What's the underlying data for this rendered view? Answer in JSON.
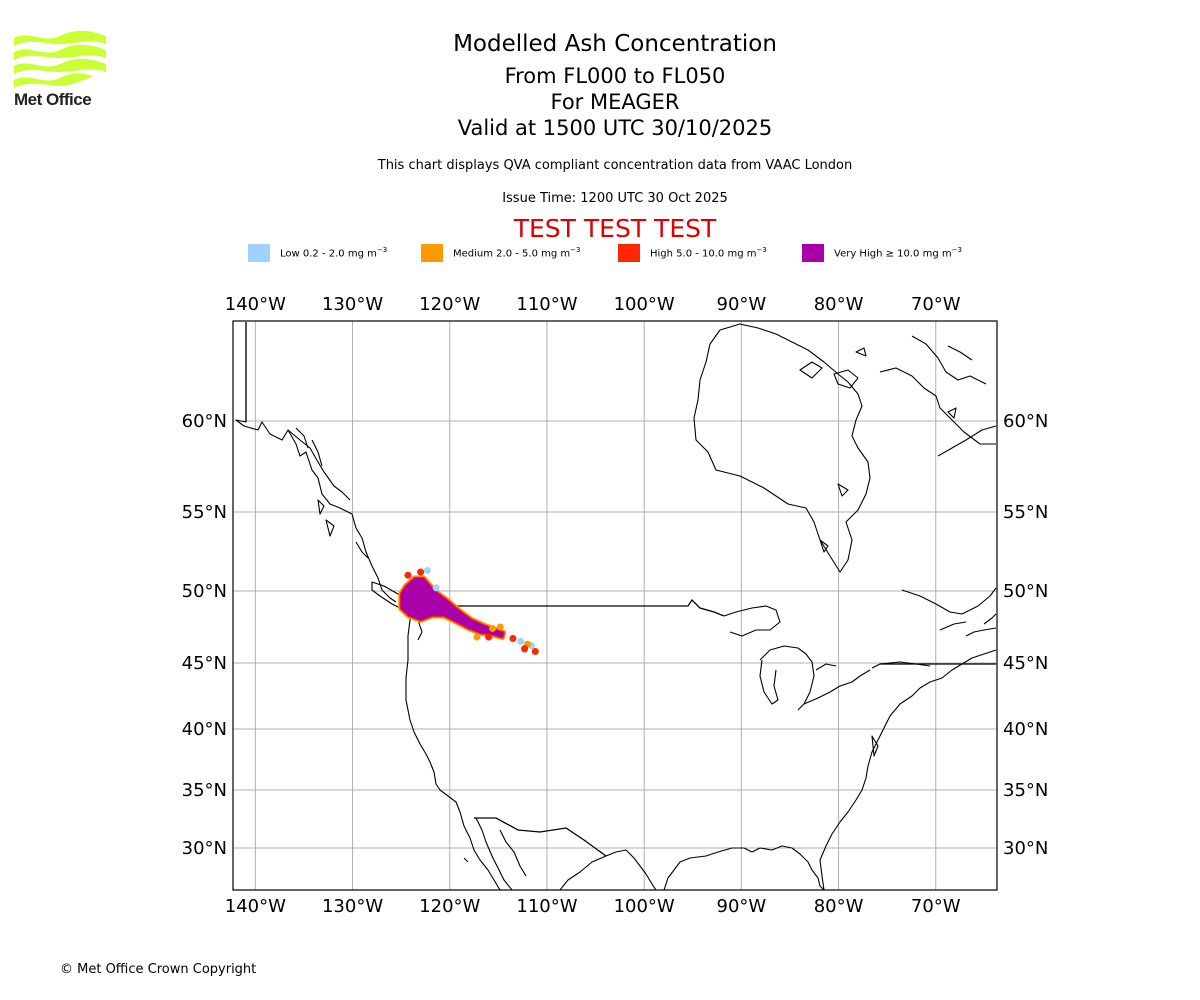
{
  "logo": {
    "text": "Met Office",
    "icon": "met-office-wave-logo",
    "color": "#ccff33"
  },
  "header": {
    "title": "Modelled Ash Concentration",
    "levels": "From FL000 to FL050",
    "volcano": "For MEAGER",
    "valid": "Valid at 1500 UTC 30/10/2025",
    "description": "This chart displays QVA compliant concentration data from VAAC London",
    "issue_time": "Issue Time: 1200 UTC 30 Oct 2025",
    "test_banner": "TEST TEST TEST"
  },
  "legend": [
    {
      "label": "Low 0.2 - 2.0 mg m",
      "unit_exp": "−3",
      "color": "#a0d2ff"
    },
    {
      "label": "Medium 2.0 - 5.0 mg m",
      "unit_exp": "−3",
      "color": "#ff9900"
    },
    {
      "label": "High 5.0 - 10.0 mg m",
      "unit_exp": "−3",
      "color": "#ff2600"
    },
    {
      "label": "Very High  ≥  10.0 mg m",
      "unit_exp": "−3",
      "color": "#aa00aa"
    }
  ],
  "map": {
    "projection": "equirectangular-stretched",
    "lon_range": [
      -142.3,
      -63.7
    ],
    "lat_range": [
      26.5,
      65.8
    ],
    "lon_ticks": [
      -140,
      -130,
      -120,
      -110,
      -100,
      -90,
      -80,
      -70
    ],
    "lon_tick_labels": [
      "140°W",
      "130°W",
      "120°W",
      "110°W",
      "100°W",
      "90°W",
      "80°W",
      "70°W"
    ],
    "lat_ticks": [
      60,
      55,
      50,
      45,
      40,
      35,
      30
    ],
    "lat_tick_labels": [
      "60°N",
      "55°N",
      "50°N",
      "45°N",
      "40°N",
      "35°N",
      "30°N"
    ],
    "grid": true,
    "plume": {
      "very_high": [
        [
          -125.0,
          49.8
        ],
        [
          -124.5,
          50.3
        ],
        [
          -123.6,
          50.8
        ],
        [
          -122.7,
          50.8
        ],
        [
          -122.0,
          50.3
        ],
        [
          -121.2,
          49.8
        ],
        [
          -120.2,
          49.3
        ],
        [
          -119.0,
          48.6
        ],
        [
          -117.8,
          48.0
        ],
        [
          -116.5,
          47.6
        ],
        [
          -115.3,
          47.3
        ],
        [
          -114.5,
          47.1
        ],
        [
          -114.6,
          46.8
        ],
        [
          -115.6,
          47.0
        ],
        [
          -116.8,
          47.1
        ],
        [
          -118.0,
          47.4
        ],
        [
          -119.4,
          47.9
        ],
        [
          -120.6,
          48.3
        ],
        [
          -121.8,
          48.3
        ],
        [
          -123.0,
          48.0
        ],
        [
          -124.2,
          48.3
        ],
        [
          -125.0,
          48.8
        ]
      ],
      "high_dots": [
        [
          -111.2,
          45.8
        ],
        [
          -112.3,
          46.0
        ],
        [
          -113.5,
          46.7
        ],
        [
          -116.0,
          46.8
        ],
        [
          -124.3,
          51.0
        ],
        [
          -123.0,
          51.2
        ]
      ],
      "medium_dots": [
        [
          -112.0,
          46.3
        ],
        [
          -114.8,
          47.5
        ],
        [
          -115.6,
          47.4
        ],
        [
          -117.2,
          46.8
        ]
      ],
      "low_dots": [
        [
          -122.3,
          51.3
        ],
        [
          -121.4,
          50.2
        ],
        [
          -112.7,
          46.5
        ],
        [
          -112.3,
          45.9
        ],
        [
          -111.6,
          46.2
        ]
      ]
    }
  },
  "footer": {
    "copyright": "© Met Office Crown Copyright"
  }
}
